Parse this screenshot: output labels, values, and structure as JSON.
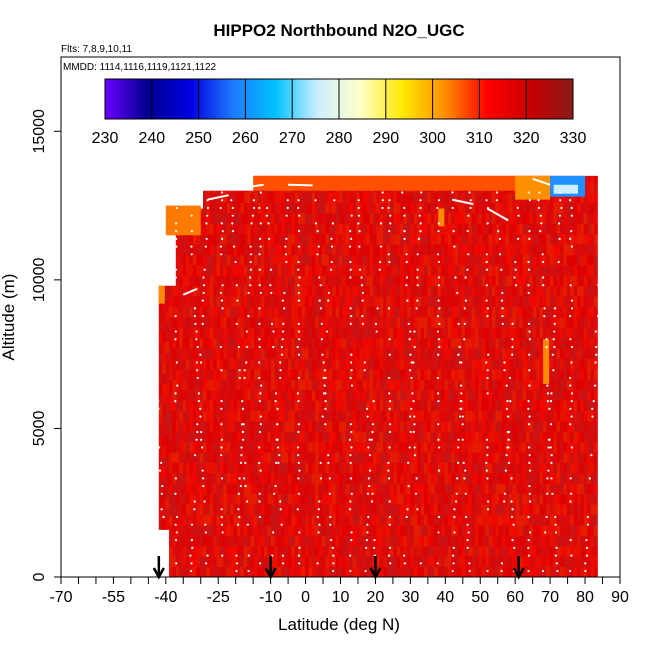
{
  "chart_data": {
    "type": "heatmap",
    "title": "HIPPO2 Northbound N2O_UGC",
    "flights_label": "Flts: 7,8,9,10,11",
    "dates_label": "MMDD: 1114,1116,1119,1121,1122",
    "xlabel": "Latitude (deg N)",
    "ylabel": "Altitude (m)",
    "xlim": [
      -70,
      90
    ],
    "ylim": [
      0,
      17500
    ],
    "x_ticks": [
      -70,
      -55,
      -40,
      -25,
      -10,
      0,
      10,
      20,
      30,
      40,
      50,
      60,
      70,
      80,
      90
    ],
    "x_minor_ticks": [
      -65,
      -60,
      -50,
      -45,
      -35,
      -30,
      -20,
      -15,
      -5,
      5,
      15,
      25,
      35,
      45,
      55,
      65,
      75,
      85
    ],
    "y_ticks": [
      0,
      5000,
      10000,
      15000
    ],
    "colorbar": {
      "ticks": [
        230,
        240,
        250,
        260,
        270,
        280,
        290,
        300,
        310,
        320,
        330
      ],
      "range": [
        230,
        330
      ],
      "colors": [
        "#6a00ff",
        "#000090",
        "#0000e0",
        "#1e7aff",
        "#00c0ff",
        "#cdeeff",
        "#ffffc8",
        "#ffe800",
        "#ff8c00",
        "#ff0000",
        "#c80000",
        "#8b1a1a"
      ]
    },
    "curtain": {
      "lat_range": [
        -42,
        83
      ],
      "alt_range": [
        0,
        13500
      ],
      "dominant_value": 322,
      "note_values": {
        "top_orange": 310,
        "stratosphere_blue": 265
      }
    },
    "profile_markers_lat": [
      -42,
      -10,
      20,
      61
    ]
  }
}
